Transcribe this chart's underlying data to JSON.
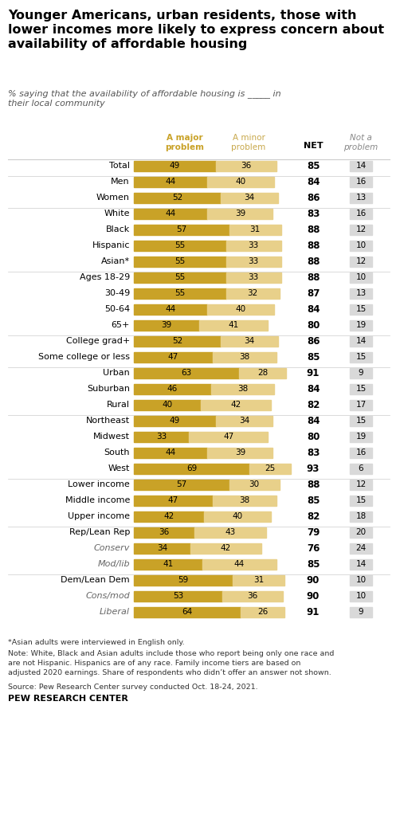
{
  "title": "Younger Americans, urban residents, those with\nlower incomes more likely to express concern about\navailability of affordable housing",
  "subtitle": "% saying that the availability of affordable housing is _____ in\ntheir local community",
  "col_header_major": "A major\nproblem",
  "col_header_minor": "A minor\nproblem",
  "col_header_net": "NET",
  "col_header_not": "Not a\nproblem",
  "color_major": "#C9A227",
  "color_minor": "#E8D08A",
  "color_not": "#D9D9D9",
  "rows": [
    {
      "label": "Total",
      "major": 49,
      "minor": 36,
      "net": 85,
      "not": 14,
      "indent": false,
      "separator_above": false
    },
    {
      "label": "Men",
      "major": 44,
      "minor": 40,
      "net": 84,
      "not": 16,
      "indent": false,
      "separator_above": true
    },
    {
      "label": "Women",
      "major": 52,
      "minor": 34,
      "net": 86,
      "not": 13,
      "indent": false,
      "separator_above": false
    },
    {
      "label": "White",
      "major": 44,
      "minor": 39,
      "net": 83,
      "not": 16,
      "indent": false,
      "separator_above": true
    },
    {
      "label": "Black",
      "major": 57,
      "minor": 31,
      "net": 88,
      "not": 12,
      "indent": false,
      "separator_above": false
    },
    {
      "label": "Hispanic",
      "major": 55,
      "minor": 33,
      "net": 88,
      "not": 10,
      "indent": false,
      "separator_above": false
    },
    {
      "label": "Asian*",
      "major": 55,
      "minor": 33,
      "net": 88,
      "not": 12,
      "indent": false,
      "separator_above": false
    },
    {
      "label": "Ages 18-29",
      "major": 55,
      "minor": 33,
      "net": 88,
      "not": 10,
      "indent": false,
      "separator_above": true
    },
    {
      "label": "30-49",
      "major": 55,
      "minor": 32,
      "net": 87,
      "not": 13,
      "indent": false,
      "separator_above": false
    },
    {
      "label": "50-64",
      "major": 44,
      "minor": 40,
      "net": 84,
      "not": 15,
      "indent": false,
      "separator_above": false
    },
    {
      "label": "65+",
      "major": 39,
      "minor": 41,
      "net": 80,
      "not": 19,
      "indent": false,
      "separator_above": false
    },
    {
      "label": "College grad+",
      "major": 52,
      "minor": 34,
      "net": 86,
      "not": 14,
      "indent": false,
      "separator_above": true
    },
    {
      "label": "Some college or less",
      "major": 47,
      "minor": 38,
      "net": 85,
      "not": 15,
      "indent": false,
      "separator_above": false
    },
    {
      "label": "Urban",
      "major": 63,
      "minor": 28,
      "net": 91,
      "not": 9,
      "indent": false,
      "separator_above": true
    },
    {
      "label": "Suburban",
      "major": 46,
      "minor": 38,
      "net": 84,
      "not": 15,
      "indent": false,
      "separator_above": false
    },
    {
      "label": "Rural",
      "major": 40,
      "minor": 42,
      "net": 82,
      "not": 17,
      "indent": false,
      "separator_above": false
    },
    {
      "label": "Northeast",
      "major": 49,
      "minor": 34,
      "net": 84,
      "not": 15,
      "indent": false,
      "separator_above": true
    },
    {
      "label": "Midwest",
      "major": 33,
      "minor": 47,
      "net": 80,
      "not": 19,
      "indent": false,
      "separator_above": false
    },
    {
      "label": "South",
      "major": 44,
      "minor": 39,
      "net": 83,
      "not": 16,
      "indent": false,
      "separator_above": false
    },
    {
      "label": "West",
      "major": 69,
      "minor": 25,
      "net": 93,
      "not": 6,
      "indent": false,
      "separator_above": false
    },
    {
      "label": "Lower income",
      "major": 57,
      "minor": 30,
      "net": 88,
      "not": 12,
      "indent": false,
      "separator_above": true
    },
    {
      "label": "Middle income",
      "major": 47,
      "minor": 38,
      "net": 85,
      "not": 15,
      "indent": false,
      "separator_above": false
    },
    {
      "label": "Upper income",
      "major": 42,
      "minor": 40,
      "net": 82,
      "not": 18,
      "indent": false,
      "separator_above": false
    },
    {
      "label": "Rep/Lean Rep",
      "major": 36,
      "minor": 43,
      "net": 79,
      "not": 20,
      "indent": false,
      "separator_above": true
    },
    {
      "label": "Conserv",
      "major": 34,
      "minor": 42,
      "net": 76,
      "not": 24,
      "indent": true,
      "separator_above": false
    },
    {
      "label": "Mod/lib",
      "major": 41,
      "minor": 44,
      "net": 85,
      "not": 14,
      "indent": true,
      "separator_above": false
    },
    {
      "label": "Dem/Lean Dem",
      "major": 59,
      "minor": 31,
      "net": 90,
      "not": 10,
      "indent": false,
      "separator_above": true
    },
    {
      "label": "Cons/mod",
      "major": 53,
      "minor": 36,
      "net": 90,
      "not": 10,
      "indent": true,
      "separator_above": false
    },
    {
      "label": "Liberal",
      "major": 64,
      "minor": 26,
      "net": 91,
      "not": 9,
      "indent": true,
      "separator_above": false
    }
  ],
  "italic_rows": [
    "Conserv",
    "Mod/lib",
    "Cons/mod",
    "Liberal"
  ],
  "footnote1": "*Asian adults were interviewed in English only.",
  "footnote2": "Note: White, Black and Asian adults include those who report being only one race and\nare not Hispanic. Hispanics are of any race. Family income tiers are based on\nadjusted 2020 earnings. Share of respondents who didn’t offer an answer not shown.",
  "footnote3": "Source: Pew Research Center survey conducted Oct. 18-24, 2021.",
  "source_label": "PEW RESEARCH CENTER",
  "fig_width": 4.97,
  "fig_height": 10.23,
  "dpi": 100
}
